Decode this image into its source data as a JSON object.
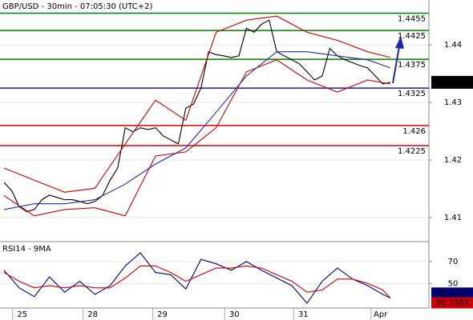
{
  "chart_data": [
    {
      "type": "line",
      "title": "GBP/USD - 30min - 07:05:30 (UTC+2)",
      "xlim": [
        -0.53,
        56.08
      ],
      "ylim": [
        1.4061,
        1.4478
      ],
      "yticks": [
        1.44,
        1.43,
        1.42,
        1.41
      ],
      "grid": true,
      "xticks": [
        {
          "value": 2.4,
          "label": "25"
        },
        {
          "value": 11.7,
          "label": "28"
        },
        {
          "value": 20.9,
          "label": "29"
        },
        {
          "value": 30.4,
          "label": "30"
        },
        {
          "value": 39.5,
          "label": "31"
        },
        {
          "value": 49.7,
          "label": "Apr"
        }
      ],
      "levels": [
        {
          "value": 1.4455,
          "color": "#008000"
        },
        {
          "value": 1.4425,
          "color": "#008000"
        },
        {
          "value": 1.4375,
          "color": "#008000"
        },
        {
          "value": 1.4325,
          "color": "#1a1a9c"
        },
        {
          "value": 1.426,
          "color": "#e00000"
        },
        {
          "value": 1.4225,
          "color": "#e00000"
        }
      ],
      "current_price": 1.4335,
      "series": [
        {
          "color": "#000000",
          "x": [
            0,
            1,
            2,
            3,
            4,
            5,
            6,
            7,
            8,
            9,
            10,
            11,
            12,
            13,
            14,
            15,
            16,
            17,
            18,
            19,
            20,
            21,
            22,
            23,
            24,
            25,
            26,
            27,
            28,
            29,
            30,
            31,
            32,
            33,
            34,
            35,
            36,
            37,
            38,
            39,
            40,
            41,
            42,
            43,
            44,
            45,
            46,
            47,
            48,
            49,
            50,
            51
          ],
          "values": [
            1.4161,
            1.4147,
            1.4119,
            1.411,
            1.4114,
            1.4131,
            1.4139,
            1.4135,
            1.4131,
            1.4131,
            1.4128,
            1.4124,
            1.4128,
            1.4138,
            1.4165,
            1.4186,
            1.4256,
            1.4249,
            1.4256,
            1.4253,
            1.4256,
            1.4242,
            1.4235,
            1.4228,
            1.429,
            1.4297,
            1.4325,
            1.4388,
            1.4383,
            1.4381,
            1.4378,
            1.4381,
            1.4429,
            1.4422,
            1.4436,
            1.4443,
            1.4388,
            1.4381,
            1.4374,
            1.4367,
            1.4353,
            1.4339,
            1.4346,
            1.4394,
            1.4381,
            1.4374,
            1.4369,
            1.4364,
            1.436,
            1.4346,
            1.4332,
            1.4335
          ]
        },
        {
          "color": "#cc0000",
          "x": [
            0,
            4,
            8,
            12,
            16,
            20,
            24,
            28,
            32,
            36,
            40,
            44,
            48,
            51
          ],
          "values": [
            1.4186,
            1.4165,
            1.4144,
            1.4151,
            1.4228,
            1.4304,
            1.4269,
            1.4422,
            1.4443,
            1.445,
            1.4422,
            1.4408,
            1.4388,
            1.4378
          ]
        },
        {
          "color": "#cc0000",
          "x": [
            0,
            4,
            8,
            12,
            16,
            20,
            24,
            28,
            32,
            36,
            40,
            44,
            48,
            51
          ],
          "values": [
            1.4138,
            1.4103,
            1.4114,
            1.4117,
            1.4103,
            1.4207,
            1.4214,
            1.4256,
            1.4353,
            1.4374,
            1.4339,
            1.4318,
            1.4339,
            1.4332
          ]
        },
        {
          "color": "#1f2fa8",
          "x": [
            0,
            4,
            8,
            12,
            16,
            20,
            24,
            28,
            32,
            36,
            40,
            44,
            48,
            51
          ],
          "values": [
            1.4114,
            1.4124,
            1.4124,
            1.4131,
            1.4158,
            1.4193,
            1.4221,
            1.4283,
            1.4346,
            1.4388,
            1.4388,
            1.4381,
            1.4374,
            1.436
          ]
        }
      ]
    },
    {
      "type": "line",
      "title": "RSI14 - 9MA",
      "xlim": [
        -0.53,
        56.08
      ],
      "ylim": [
        27.6,
        86
      ],
      "yticks": [
        70,
        50
      ],
      "grid": true,
      "series": [
        {
          "color": "#000080",
          "x": [
            0,
            2,
            4,
            6,
            8,
            10,
            12,
            14,
            16,
            18,
            20,
            22,
            24,
            26,
            28,
            30,
            32,
            34,
            36,
            38,
            40,
            42,
            44,
            46,
            48,
            50,
            51
          ],
          "values": [
            62,
            46,
            38,
            56,
            42,
            52,
            40,
            48,
            66,
            78,
            60,
            58,
            45,
            72,
            68,
            62,
            70,
            62,
            55,
            48,
            32,
            52,
            64,
            54,
            48,
            40,
            36.8197
          ]
        },
        {
          "color": "#cc0000",
          "x": [
            0,
            2,
            4,
            6,
            8,
            10,
            12,
            14,
            16,
            18,
            20,
            22,
            24,
            26,
            28,
            30,
            32,
            34,
            36,
            38,
            40,
            42,
            44,
            46,
            48,
            50,
            51
          ],
          "values": [
            60,
            52,
            46,
            48,
            46,
            48,
            46,
            46,
            55,
            66,
            66,
            60,
            52,
            58,
            64,
            64,
            66,
            64,
            58,
            52,
            42,
            44,
            54,
            54,
            50,
            44,
            36.7383
          ]
        }
      ]
    }
  ]
}
